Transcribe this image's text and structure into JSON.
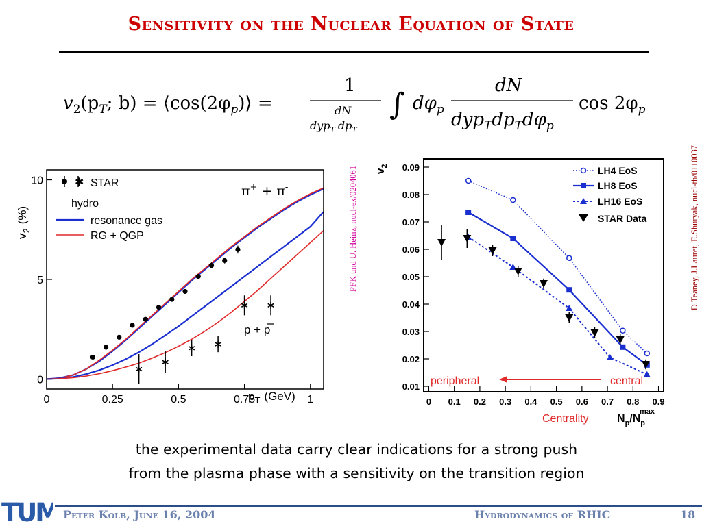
{
  "slide": {
    "title": "Sensitivity on the Nuclear Equation of State",
    "caption_line1": "the experimental data carry clear indications for a strong push",
    "caption_line2": "from the plasma phase with a sensitivity on the transition region",
    "footer_left": "Peter Kolb, June 16, 2004",
    "footer_right": "Hydrodynamics of RHIC",
    "page_number": "18",
    "logo_text": "TUM",
    "cite_left": "PFK und U. Heinz, nucl-ex/0204061",
    "cite_right": "D.Teaney, J.Lauret, E.Shuryak, nucl-th/0110037"
  },
  "formula": {
    "lhs": "v",
    "lhs_sub": "2",
    "args": "(p",
    "args_sub": "T",
    "args_rest": "; b) = ⟨cos(2φ",
    "p": "p",
    "close": ")⟩ =",
    "one": "1",
    "dN": "dN",
    "den1": "dyp",
    "T": "T",
    "dp": "dp",
    "integral": "∫",
    "dphi": "dφ",
    "num2": "dN",
    "den2a": "dyp",
    "den2b": "dp",
    "den2c": "dφ",
    "cos": "cos 2φ"
  },
  "chart_data": [
    {
      "type": "line",
      "xlabel_main": "p",
      "xlabel_sub": "T",
      "xlabel_unit": "(GeV)",
      "ylabel_main": "v",
      "ylabel_sub": "2",
      "ylabel_unit": "(%)",
      "xlim": [
        0,
        1.05
      ],
      "ylim": [
        -0.5,
        10.5
      ],
      "xticks": [
        0,
        0.25,
        0.5,
        0.75,
        1
      ],
      "xtick_labels": [
        "0",
        "0.25",
        "0.5",
        "0.75",
        "1"
      ],
      "yticks": [
        0,
        5,
        10
      ],
      "ytick_labels": [
        "0",
        "5",
        "10"
      ],
      "legend": {
        "star": "STAR",
        "hydro": "hydro",
        "rg": "resonance gas",
        "qgp": "RG + QGP"
      },
      "annot_pi_a": "π",
      "annot_pi_b": "+",
      "annot_pi_c": " + π",
      "annot_pi_d": "-",
      "annot_p": "p + ",
      "annot_pbar": "p",
      "colors": {
        "rg": "#1a2fd0",
        "qgp": "#e02a2a"
      },
      "series": [
        {
          "kind": "curve",
          "color": "rg",
          "x": [
            0,
            0.05,
            0.1,
            0.15,
            0.2,
            0.25,
            0.3,
            0.35,
            0.4,
            0.45,
            0.5,
            0.55,
            0.6,
            0.65,
            0.7,
            0.75,
            0.8,
            0.85,
            0.9,
            0.95,
            1.0,
            1.05
          ],
          "y": [
            0,
            0.05,
            0.2,
            0.5,
            0.9,
            1.4,
            1.95,
            2.55,
            3.15,
            3.75,
            4.35,
            4.95,
            5.5,
            6.05,
            6.6,
            7.1,
            7.6,
            8.05,
            8.5,
            8.9,
            9.25,
            9.55
          ]
        },
        {
          "kind": "curve",
          "color": "qgp",
          "x": [
            0,
            0.05,
            0.1,
            0.15,
            0.2,
            0.25,
            0.3,
            0.35,
            0.4,
            0.45,
            0.5,
            0.55,
            0.6,
            0.65,
            0.7,
            0.75,
            0.8,
            0.85,
            0.9,
            0.95,
            1.0,
            1.05
          ],
          "y": [
            0,
            0.05,
            0.2,
            0.5,
            0.95,
            1.45,
            2.0,
            2.6,
            3.2,
            3.8,
            4.4,
            5.0,
            5.55,
            6.1,
            6.65,
            7.15,
            7.65,
            8.1,
            8.55,
            8.95,
            9.3,
            9.6
          ]
        },
        {
          "kind": "curve",
          "color": "rg",
          "x": [
            0,
            0.05,
            0.1,
            0.15,
            0.2,
            0.25,
            0.3,
            0.35,
            0.4,
            0.45,
            0.5,
            0.55,
            0.6,
            0.65,
            0.7,
            0.75,
            0.8,
            0.85,
            0.9,
            0.95,
            1.0,
            1.05
          ],
          "y": [
            0,
            0.03,
            0.1,
            0.25,
            0.45,
            0.7,
            1.0,
            1.35,
            1.75,
            2.2,
            2.65,
            3.15,
            3.65,
            4.15,
            4.65,
            5.15,
            5.65,
            6.15,
            6.65,
            7.15,
            7.65,
            8.4
          ]
        },
        {
          "kind": "curve",
          "color": "qgp",
          "x": [
            0,
            0.05,
            0.1,
            0.15,
            0.2,
            0.25,
            0.3,
            0.35,
            0.4,
            0.45,
            0.5,
            0.55,
            0.6,
            0.65,
            0.7,
            0.75,
            0.8,
            0.85,
            0.9,
            0.95,
            1.0,
            1.05
          ],
          "y": [
            0,
            0.02,
            0.07,
            0.15,
            0.27,
            0.42,
            0.6,
            0.8,
            1.05,
            1.33,
            1.65,
            2.0,
            2.4,
            2.85,
            3.35,
            3.9,
            4.45,
            5.05,
            5.65,
            6.25,
            6.85,
            7.45
          ]
        },
        {
          "kind": "pion",
          "x": [
            0.175,
            0.225,
            0.275,
            0.325,
            0.375,
            0.425,
            0.475,
            0.525,
            0.575,
            0.625,
            0.675,
            0.725
          ],
          "y": [
            1.1,
            1.6,
            2.1,
            2.7,
            3.0,
            3.6,
            4.0,
            4.4,
            5.15,
            5.7,
            5.95,
            6.5
          ],
          "err": [
            0.1,
            0.1,
            0.1,
            0.1,
            0.1,
            0.1,
            0.1,
            0.12,
            0.12,
            0.15,
            0.15,
            0.2
          ]
        },
        {
          "kind": "proton",
          "x": [
            0.35,
            0.45,
            0.55,
            0.65,
            0.75,
            0.85
          ],
          "y": [
            0.5,
            0.85,
            1.55,
            1.75,
            3.7,
            3.7
          ],
          "err": [
            0.75,
            0.55,
            0.4,
            0.4,
            0.5,
            0.5
          ]
        }
      ]
    },
    {
      "type": "line",
      "xlabel_a": "Centrality",
      "xlabel_b": "N",
      "xlabel_b_sub": "p",
      "xlabel_c": "/N",
      "xlabel_c_sub": "p",
      "xlabel_c_sup": "max",
      "ylabel_main": "v",
      "ylabel_sub": "2",
      "xlim": [
        -0.02,
        0.92
      ],
      "ylim": [
        0.008,
        0.093
      ],
      "xticks": [
        0,
        0.1,
        0.2,
        0.3,
        0.4,
        0.5,
        0.6,
        0.7,
        0.8,
        0.9
      ],
      "xtick_labels": [
        "0",
        "0.1",
        "0.2",
        "0.3",
        "0.4",
        "0.5",
        "0.6",
        "0.7",
        "0.8",
        "0.9"
      ],
      "yticks": [
        0.01,
        0.02,
        0.03,
        0.04,
        0.05,
        0.06,
        0.07,
        0.08,
        0.09
      ],
      "ytick_labels": [
        "0.01",
        "0.02",
        "0.03",
        "0.04",
        "0.05",
        "0.06",
        "0.07",
        "0.08",
        "0.09"
      ],
      "arrow_left": "peripheral",
      "arrow_right": "central",
      "colors": {
        "model": "#1a2fd0",
        "arrow": "#e02a2a"
      },
      "series": [
        {
          "name": "LH4 EoS",
          "style": "dotted",
          "marker": "circle",
          "x": [
            0.155,
            0.33,
            0.55,
            0.76,
            0.855
          ],
          "y": [
            0.085,
            0.078,
            0.0568,
            0.0303,
            0.022
          ]
        },
        {
          "name": "LH8 EoS",
          "style": "solid",
          "marker": "square",
          "x": [
            0.155,
            0.33,
            0.55,
            0.76,
            0.855
          ],
          "y": [
            0.0735,
            0.064,
            0.0452,
            0.0243,
            0.0178
          ]
        },
        {
          "name": "LH16 EoS",
          "style": "dashed",
          "marker": "triangle",
          "x": [
            0.155,
            0.33,
            0.55,
            0.71,
            0.855
          ],
          "y": [
            0.0645,
            0.0535,
            0.0385,
            0.0205,
            0.0143
          ]
        },
        {
          "name": "STAR Data",
          "style": "none",
          "marker": "triangle-down",
          "x": [
            0.05,
            0.15,
            0.25,
            0.35,
            0.45,
            0.55,
            0.65,
            0.75,
            0.85
          ],
          "y": [
            0.0625,
            0.064,
            0.0595,
            0.052,
            0.0475,
            0.035,
            0.0295,
            0.027,
            0.018
          ],
          "err": [
            0.0065,
            0.0035,
            0.002,
            0.002,
            0.0018,
            0.002,
            0.002,
            0.002,
            0.0018
          ]
        }
      ]
    }
  ]
}
